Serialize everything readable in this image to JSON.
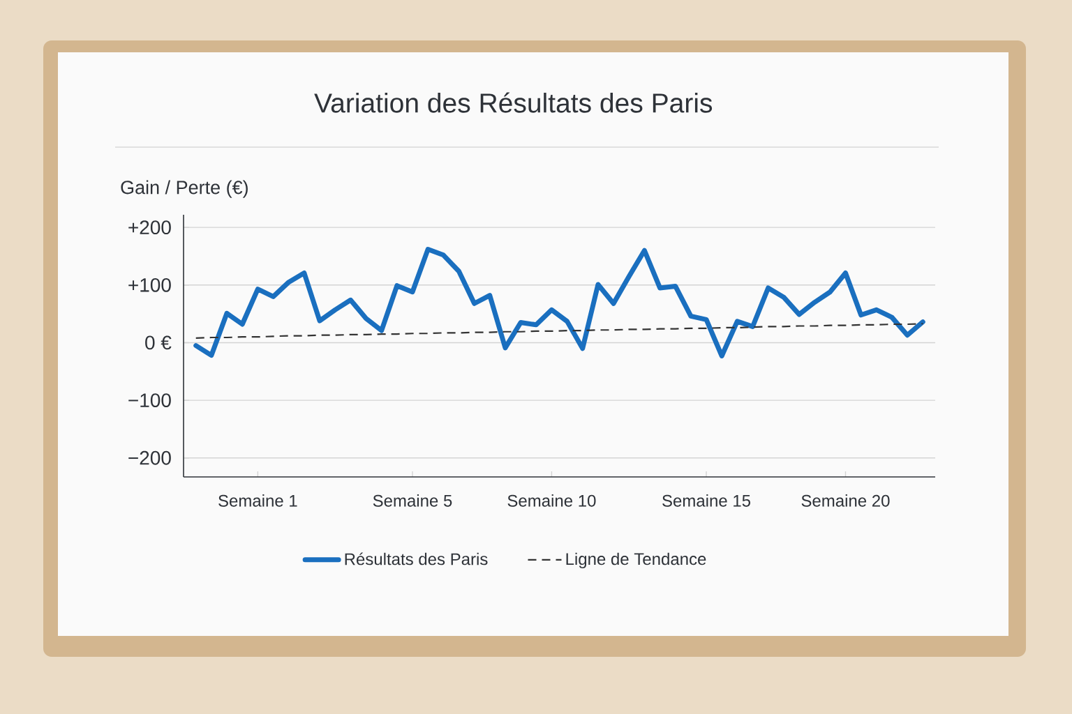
{
  "chart_data": {
    "type": "line",
    "title": "Variation des Résultats des Paris",
    "ylabel": "Gain / Perte (€)",
    "categories": [
      null,
      null,
      null,
      null,
      "Semaine 1",
      null,
      null,
      null,
      null,
      null,
      null,
      null,
      null,
      null,
      "Semaine 5",
      null,
      null,
      null,
      null,
      null,
      null,
      null,
      null,
      "Semaine 10",
      null,
      null,
      null,
      null,
      null,
      null,
      null,
      null,
      null,
      "Semaine 15",
      null,
      null,
      null,
      null,
      null,
      null,
      null,
      null,
      "Semaine 20",
      null,
      null,
      null,
      null,
      null
    ],
    "ylim": [
      -233,
      222
    ],
    "yticks": [
      {
        "value": -200,
        "label": "−200"
      },
      {
        "value": -100,
        "label": "−100"
      },
      {
        "value": 0,
        "label": "0 €"
      },
      {
        "value": 100,
        "label": "+100"
      },
      {
        "value": 200,
        "label": "+200"
      }
    ],
    "grid": "y",
    "legend": "bottom",
    "line_style": "solid",
    "series": [
      {
        "name": "Résultats des Paris",
        "color": "#1a6fbf",
        "values": [
          -5,
          -22,
          51,
          32,
          93,
          80,
          105,
          121,
          38,
          57,
          74,
          42,
          21,
          99,
          88,
          162,
          152,
          124,
          68,
          82,
          -9,
          35,
          31,
          57,
          37,
          -10,
          101,
          68,
          115,
          160,
          95,
          98,
          46,
          40,
          -23,
          37,
          28,
          95,
          79,
          49,
          70,
          88,
          121,
          48,
          57,
          44,
          13,
          36
        ]
      },
      {
        "name": "Ligne de Tendance",
        "type": "line",
        "color": "#333333",
        "line_style": "dashed",
        "values": [
          8,
          9,
          9,
          10,
          10,
          11,
          12,
          12,
          13,
          13,
          14,
          14,
          15,
          15,
          16,
          16,
          17,
          17,
          18,
          18,
          19,
          19,
          20,
          20,
          21,
          21,
          22,
          22,
          23,
          23,
          24,
          24,
          25,
          25,
          26,
          26,
          27,
          28,
          28,
          29,
          29,
          30,
          30,
          31,
          31,
          32,
          32,
          33
        ]
      }
    ]
  }
}
